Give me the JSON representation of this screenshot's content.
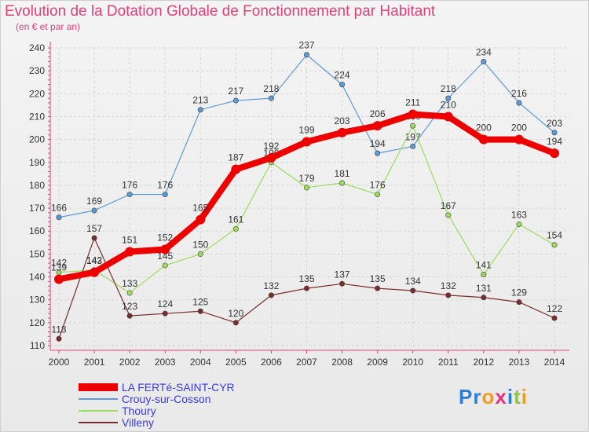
{
  "title": "Evolution de la Dotation Globale de Fonctionnement par Habitant",
  "subtitle": "(en € et par an)",
  "logo": {
    "text": "Proxiti",
    "letter_colors": [
      "#2b7fd6",
      "#2b7fd6",
      "#f39a1d",
      "#e5307c",
      "#2b7fd6",
      "#8cc63f",
      "#f39a1d"
    ]
  },
  "chart_data": {
    "type": "line",
    "title": "Evolution de la Dotation Globale de Fonctionnement par Habitant",
    "subtitle": "(en € et par an)",
    "xlabel": "",
    "ylabel": "",
    "x": [
      "2000",
      "2001",
      "2002",
      "2003",
      "2004",
      "2005",
      "2006",
      "2007",
      "2008",
      "2009",
      "2010",
      "2011",
      "2012",
      "2013",
      "2014"
    ],
    "ylim": [
      110,
      240
    ],
    "yticks": [
      "110",
      "120",
      "130",
      "140",
      "150",
      "160",
      "170",
      "180",
      "190",
      "200",
      "210",
      "220",
      "230",
      "240"
    ],
    "grid": true,
    "legend": "bottom-left",
    "series": [
      {
        "name": "LA FERTé-SAINT-CYR",
        "color": "#ee0000",
        "emphasis": true,
        "values": [
          139,
          142,
          151,
          152,
          165,
          187,
          192,
          199,
          203,
          206,
          211,
          210,
          200,
          200,
          194
        ],
        "labels": [
          "139",
          "142",
          "151",
          "152",
          "165",
          "187",
          "192",
          "199",
          "203",
          "206",
          "211",
          "210",
          "200",
          "200",
          "194"
        ]
      },
      {
        "name": "Crouy-sur-Cosson",
        "color": "#5b9bd5",
        "values": [
          166,
          169,
          176,
          176,
          213,
          217,
          218,
          237,
          224,
          194,
          197,
          218,
          234,
          216,
          203
        ],
        "labels": [
          "166",
          "169",
          "176",
          "176",
          "213",
          "217",
          "218",
          "237",
          "224",
          "194",
          "197",
          "218",
          "234",
          "216",
          "203"
        ]
      },
      {
        "name": "Thoury",
        "color": "#9bdc5a",
        "values": [
          142,
          143,
          133,
          145,
          150,
          161,
          190,
          179,
          181,
          176,
          206,
          167,
          141,
          163,
          154
        ],
        "labels": [
          "142",
          "143",
          "133",
          "145",
          "150",
          "161",
          "190",
          "179",
          "181",
          "176",
          "206",
          "167",
          "141",
          "163",
          "154"
        ]
      },
      {
        "name": "Villeny",
        "color": "#7a2b2b",
        "values": [
          113,
          157,
          123,
          124,
          125,
          120,
          132,
          135,
          137,
          135,
          134,
          132,
          131,
          129,
          122
        ],
        "labels": [
          "113",
          "157",
          "123",
          "124",
          "125",
          "120",
          "132",
          "135",
          "137",
          "135",
          "134",
          "132",
          "131",
          "129",
          "122"
        ]
      }
    ]
  }
}
